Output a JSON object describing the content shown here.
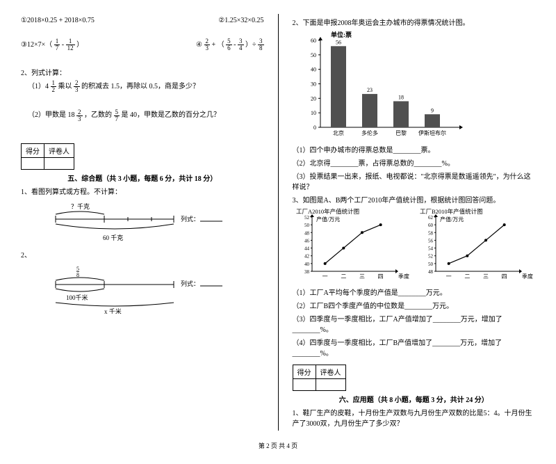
{
  "left": {
    "q1a": "①2018×0.25 + 2018×0.75",
    "q1b": "②1.25×32×0.25",
    "q1c_pre": "③12×7×（",
    "q1c_f1n": "1",
    "q1c_f1d": "7",
    "q1c_mid": " - ",
    "q1c_f2n": "1",
    "q1c_f2d": "12",
    "q1c_post": "）",
    "q1d_pre": "④",
    "q1d_f1n": "2",
    "q1d_f1d": "3",
    "q1d_mid1": " + （",
    "q1d_f2n": "5",
    "q1d_f2d": "6",
    "q1d_mid2": " - ",
    "q1d_f3n": "3",
    "q1d_f3d": "4",
    "q1d_mid3": "）÷",
    "q1d_f4n": "3",
    "q1d_f4d": "8",
    "q2_title": "2、列式计算：",
    "q2_1a": "（1）4",
    "q2_1fn": "1",
    "q2_1fd": "2",
    "q2_1b": "乘以",
    "q2_1f2n": "2",
    "q2_1f2d": "3",
    "q2_1c": "的积减去 1.5，再除以 0.5，商是多少？",
    "q2_2a": "（2）甲数是 18",
    "q2_2fn": "2",
    "q2_2fd": "3",
    "q2_2b": "，乙数的",
    "q2_2f2n": "5",
    "q2_2f2d": "7",
    "q2_2c": "是 40，甲数是乙数的百分之几？",
    "score_label": "得分",
    "marker_label": "评卷人",
    "sec5_title": "五、综合题（共 3 小题，每题 6 分，共计 18 分）",
    "sec5_q1": "1、看图列算式或方程。不计算：",
    "d1_top": "？千克",
    "d1_bottom": "60 千克",
    "d1_side": "列式：",
    "sub2": "2、",
    "d2_top_n": "5",
    "d2_top_d": "8",
    "d2_mid": "100千米",
    "d2_bottom": "x 千米",
    "d2_side": "列式：",
    "blank_line": "______________"
  },
  "right": {
    "q2_title": "2、下面是申报2008年奥运会主办城市的得票情况统计图。",
    "chart": {
      "unit": "单位:票",
      "y_ticks": [
        0,
        10,
        20,
        30,
        40,
        50,
        60
      ],
      "categories": [
        "北京",
        "多伦多",
        "巴黎",
        "伊斯坦布尔"
      ],
      "values": [
        56,
        23,
        18,
        9
      ],
      "bar_color": "#505050",
      "axis_color": "#000000",
      "bg": "#ffffff",
      "font": 9
    },
    "r1": "（1）四个申办城市的得票总数是________票。",
    "r2": "（2）北京得________票，占得票总数的________%。",
    "r3": "（3）投票结果一出来，报纸、电视都说：\"北京得票是数遥遥领先\"，为什么这样说？",
    "q3_title": "3、如图是A、B两个工厂2010年产值统计图，根据统计图回答问题。",
    "lineA": {
      "title": "工厂A2010年产值统计图",
      "ylab": "产值/万元",
      "xlab": "季度",
      "y_ticks": [
        38,
        40,
        42,
        44,
        46,
        48,
        50,
        52
      ],
      "x_ticks": [
        "一",
        "二",
        "三",
        "四"
      ],
      "values": [
        40,
        44,
        48,
        50
      ],
      "color": "#000000"
    },
    "lineB": {
      "title": "工厂B2010年产值统计图",
      "ylab": "产值/万元",
      "xlab": "季度",
      "y_ticks": [
        48,
        50,
        52,
        54,
        56,
        58,
        60,
        62
      ],
      "x_ticks": [
        "一",
        "二",
        "三",
        "四"
      ],
      "values": [
        50,
        52,
        56,
        60
      ],
      "color": "#000000"
    },
    "l1": "（1）工厂A平均每个季度的产值是________万元。",
    "l2": "（2）工厂B四个季度产值的中位数是________万元。",
    "l3": "（3）四季度与一季度相比，工厂A产值增加了________万元，增加了________%。",
    "l4": "（4）四季度与一季度相比，工厂B产值增加了________万元，增加了________%。",
    "sec6_title": "六、应用题（共 8 小题，每题 3 分，共计 24 分）",
    "sec6_q1": "1、鞋厂生产的皮鞋，十月份生产双数与九月份生产双数的比是5：4。十月份生产了3000双，九月份生产了多少双？"
  },
  "footer": "第 2 页 共 4 页"
}
